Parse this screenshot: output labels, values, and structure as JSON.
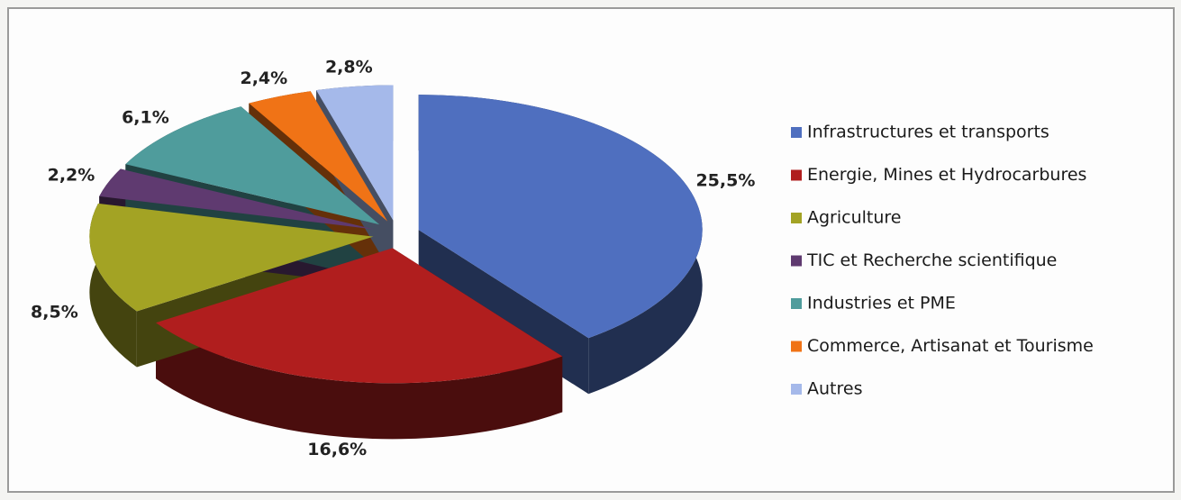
{
  "chart_data": {
    "type": "pie",
    "categories": [
      "Infrastructures et transports",
      "Energie, Mines et Hydrocarbures",
      "Agriculture",
      "TIC et Recherche scientifique",
      "Industries et PME",
      "Commerce, Artisanat et Tourisme",
      "Autres"
    ],
    "values": [
      25.5,
      16.6,
      8.5,
      2.2,
      6.1,
      2.4,
      2.8
    ],
    "value_labels": [
      "25,5%",
      "16,6%",
      "8,5%",
      "2,2%",
      "6,1%",
      "2,4%",
      "2,8%"
    ],
    "colors": [
      "#4f6fbf",
      "#b01e1e",
      "#a3a324",
      "#5f3a70",
      "#4f9c9c",
      "#f07316",
      "#a5b9ea"
    ],
    "legend": "right"
  }
}
